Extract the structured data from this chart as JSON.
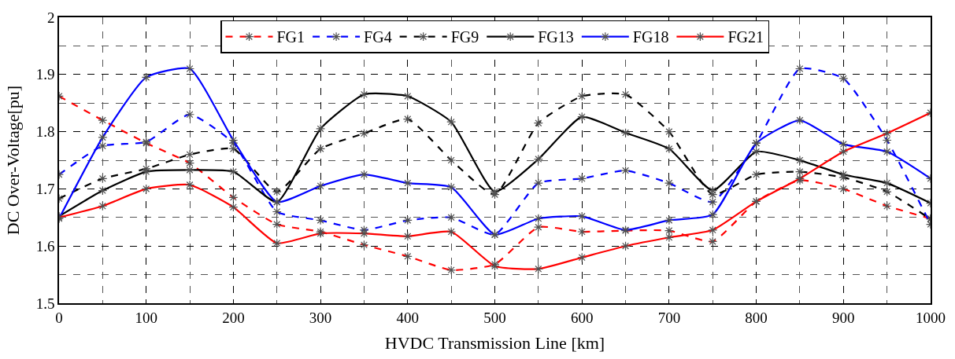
{
  "chart_data": {
    "type": "line",
    "xlabel": "HVDC Transmission Line [km]",
    "ylabel": "DC Over-Voltage[pu]",
    "x": [
      0,
      50,
      100,
      150,
      200,
      250,
      300,
      350,
      400,
      450,
      500,
      550,
      600,
      650,
      700,
      750,
      800,
      850,
      900,
      950,
      1000
    ],
    "xlim": [
      0,
      1000
    ],
    "xticks": [
      0,
      100,
      200,
      300,
      400,
      500,
      600,
      700,
      800,
      900,
      1000
    ],
    "ylim": [
      1.5,
      2
    ],
    "yticks": [
      1.5,
      1.6,
      1.7,
      1.8,
      1.9,
      2
    ],
    "grid": true,
    "legend": "top",
    "marker": "cross",
    "series": [
      {
        "name": "FG1",
        "color": "#ff0000",
        "line_style": "dashed",
        "values": [
          1.862,
          1.82,
          1.78,
          1.745,
          1.685,
          1.638,
          1.625,
          1.602,
          1.582,
          1.558,
          1.568,
          1.633,
          1.625,
          1.627,
          1.627,
          1.608,
          1.678,
          1.715,
          1.7,
          1.67,
          1.648
        ]
      },
      {
        "name": "FG4",
        "color": "#0000ff",
        "line_style": "dashed",
        "values": [
          1.725,
          1.775,
          1.782,
          1.83,
          1.78,
          1.66,
          1.645,
          1.628,
          1.645,
          1.65,
          1.62,
          1.71,
          1.718,
          1.732,
          1.71,
          1.677,
          1.78,
          1.91,
          1.893,
          1.785,
          1.638
        ]
      },
      {
        "name": "FG9",
        "color": "#000000",
        "line_style": "dashed",
        "values": [
          1.683,
          1.718,
          1.735,
          1.76,
          1.77,
          1.695,
          1.77,
          1.797,
          1.822,
          1.75,
          1.69,
          1.815,
          1.862,
          1.865,
          1.8,
          1.69,
          1.725,
          1.73,
          1.72,
          1.695,
          1.647
        ]
      },
      {
        "name": "FG13",
        "color": "#000000",
        "line_style": "solid",
        "values": [
          1.652,
          1.697,
          1.73,
          1.733,
          1.73,
          1.677,
          1.805,
          1.865,
          1.862,
          1.817,
          1.695,
          1.752,
          1.826,
          1.798,
          1.77,
          1.697,
          1.765,
          1.75,
          1.725,
          1.71,
          1.675
        ]
      },
      {
        "name": "FG18",
        "color": "#0000ff",
        "line_style": "solid",
        "values": [
          1.648,
          1.79,
          1.895,
          1.91,
          1.785,
          1.677,
          1.705,
          1.725,
          1.71,
          1.703,
          1.62,
          1.648,
          1.652,
          1.628,
          1.645,
          1.655,
          1.78,
          1.82,
          1.778,
          1.765,
          1.718
        ]
      },
      {
        "name": "FG21",
        "color": "#ff0000",
        "line_style": "solid",
        "values": [
          1.65,
          1.67,
          1.7,
          1.707,
          1.668,
          1.605,
          1.622,
          1.622,
          1.617,
          1.625,
          1.565,
          1.56,
          1.58,
          1.6,
          1.615,
          1.628,
          1.678,
          1.718,
          1.765,
          1.797,
          1.833
        ]
      }
    ]
  }
}
